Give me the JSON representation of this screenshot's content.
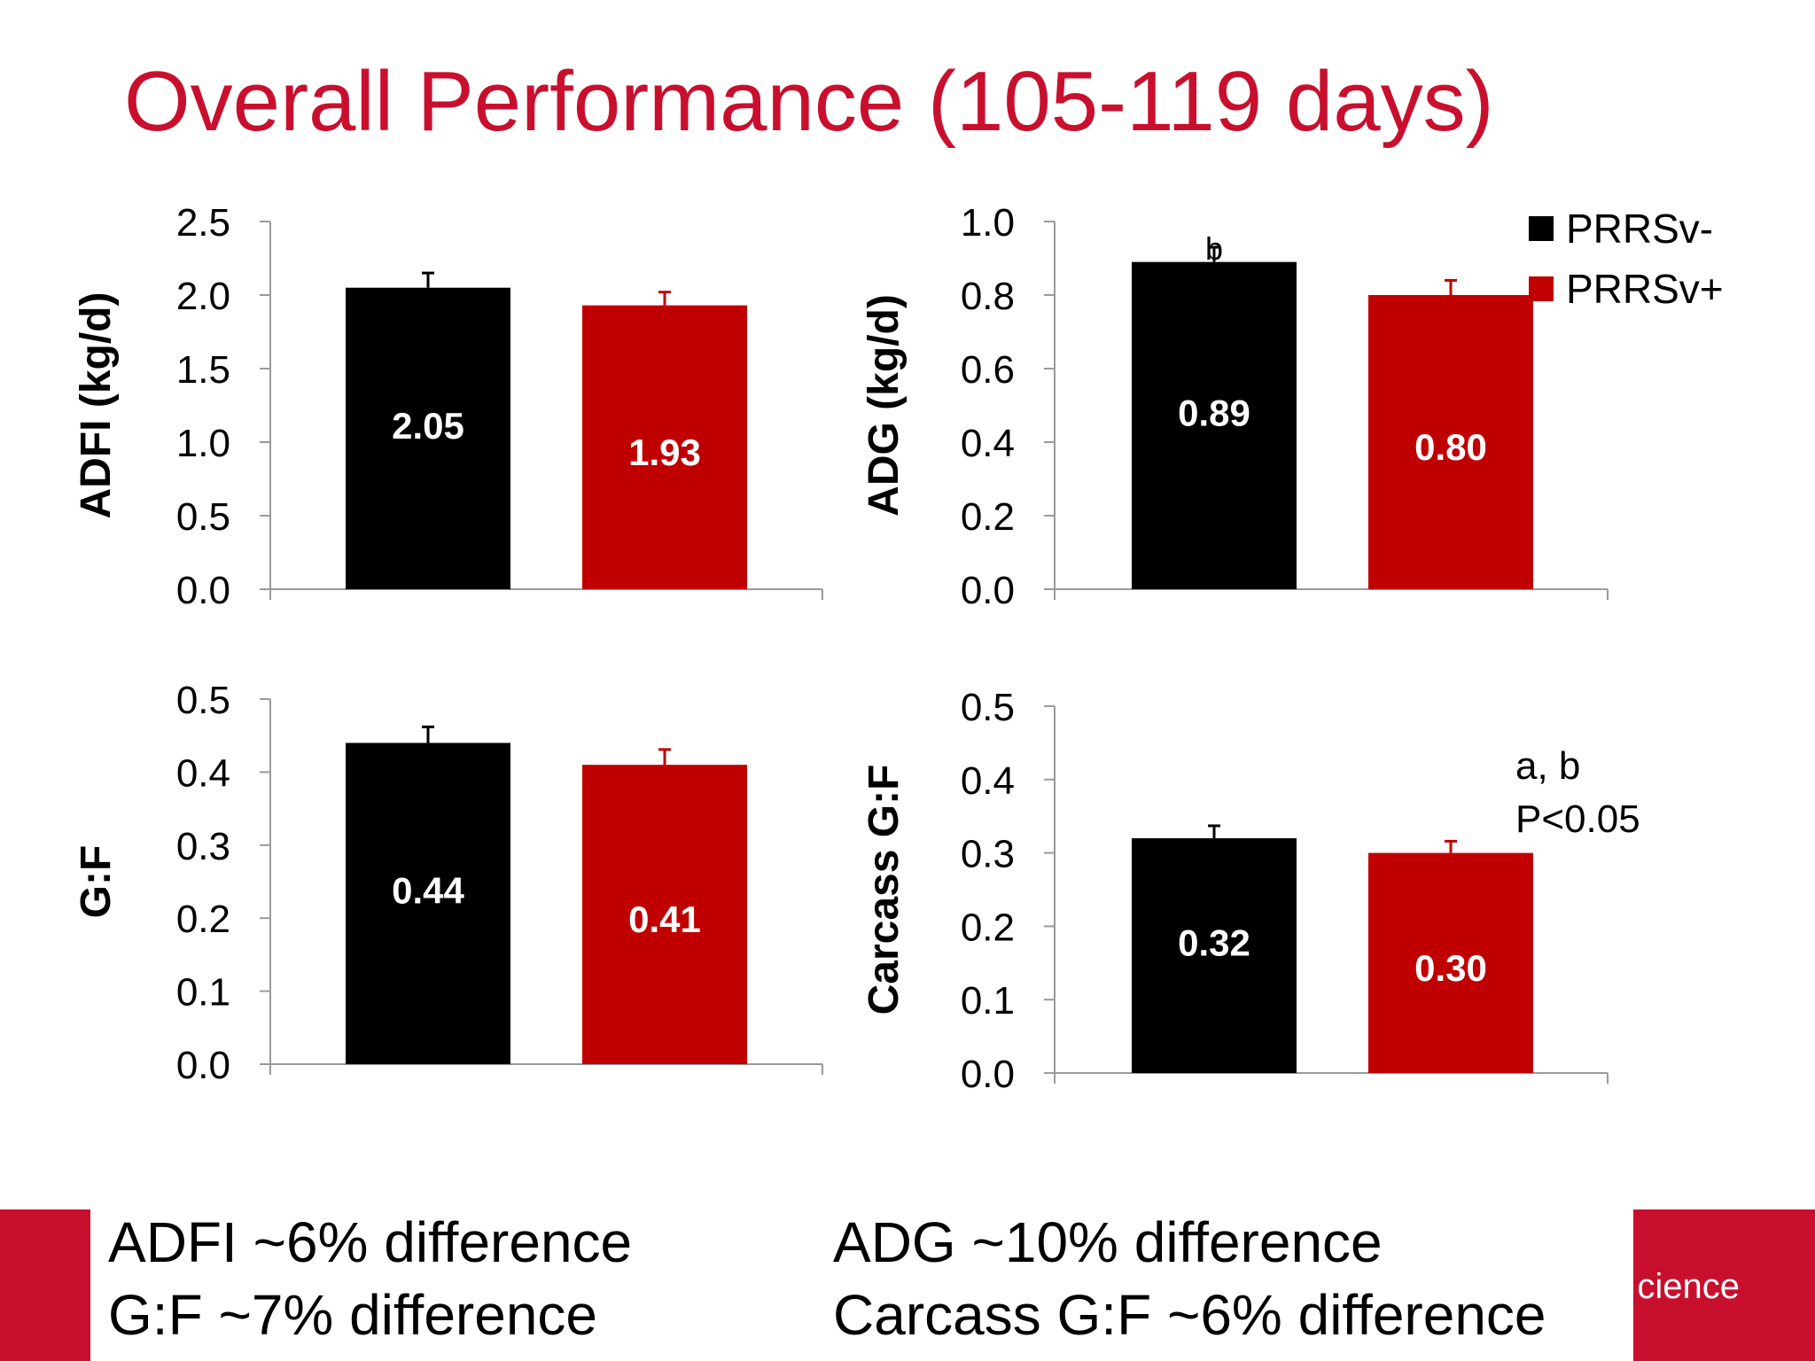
{
  "title": "Overall Performance (105-119 days)",
  "colors": {
    "title": "#c8102e",
    "prrs_neg": "#000000",
    "prrs_pos": "#c00000",
    "footer": "#c8102e"
  },
  "legend": [
    {
      "label": "PRRSv-",
      "color": "#000000"
    },
    {
      "label": "PRRSv+",
      "color": "#c00000"
    }
  ],
  "significance_note": {
    "line1": "a, b",
    "line2": "P<0.05"
  },
  "footer": {
    "notes_left": [
      "ADFI ~6% difference",
      "G:F ~7% difference"
    ],
    "notes_right": [
      "ADG ~10% difference",
      "Carcass G:F ~6% difference"
    ],
    "brand_fragment": "cience"
  },
  "chart_data": [
    {
      "type": "bar",
      "ylabel": "ADFI (kg/d)",
      "ylim": [
        0,
        2.5
      ],
      "yticks": [
        "0.0",
        "0.5",
        "1.0",
        "1.5",
        "2.0",
        "2.5"
      ],
      "series": [
        {
          "name": "PRRSv-",
          "values": [
            2.05
          ],
          "error": [
            0.1
          ],
          "data_labels": [
            "2.05"
          ]
        },
        {
          "name": "PRRSv+",
          "values": [
            1.93
          ],
          "error": [
            0.09
          ],
          "data_labels": [
            "1.93"
          ]
        }
      ]
    },
    {
      "type": "bar",
      "ylabel": "ADG (kg/d)",
      "ylim": [
        0,
        1.0
      ],
      "yticks": [
        "0.0",
        "0.2",
        "0.4",
        "0.6",
        "0.8",
        "1.0"
      ],
      "series": [
        {
          "name": "PRRSv-",
          "values": [
            0.89
          ],
          "error": [
            0.04
          ],
          "data_labels": [
            "0.89"
          ],
          "annotation": "b"
        },
        {
          "name": "PRRSv+",
          "values": [
            0.8
          ],
          "error": [
            0.04
          ],
          "data_labels": [
            "0.80"
          ]
        }
      ]
    },
    {
      "type": "bar",
      "ylabel": "G:F",
      "ylim": [
        0,
        0.5
      ],
      "yticks": [
        "0.0",
        "0.1",
        "0.2",
        "0.3",
        "0.4",
        "0.5"
      ],
      "series": [
        {
          "name": "PRRSv-",
          "values": [
            0.44
          ],
          "error": [
            0.022
          ],
          "data_labels": [
            "0.44"
          ]
        },
        {
          "name": "PRRSv+",
          "values": [
            0.41
          ],
          "error": [
            0.021
          ],
          "data_labels": [
            "0.41"
          ]
        }
      ]
    },
    {
      "type": "bar",
      "ylabel": "Carcass G:F",
      "ylim": [
        0,
        0.5
      ],
      "yticks": [
        "0.0",
        "0.1",
        "0.2",
        "0.3",
        "0.4",
        "0.5"
      ],
      "series": [
        {
          "name": "PRRSv-",
          "values": [
            0.32
          ],
          "error": [
            0.017
          ],
          "data_labels": [
            "0.32"
          ]
        },
        {
          "name": "PRRSv+",
          "values": [
            0.3
          ],
          "error": [
            0.016
          ],
          "data_labels": [
            "0.30"
          ]
        }
      ]
    }
  ]
}
